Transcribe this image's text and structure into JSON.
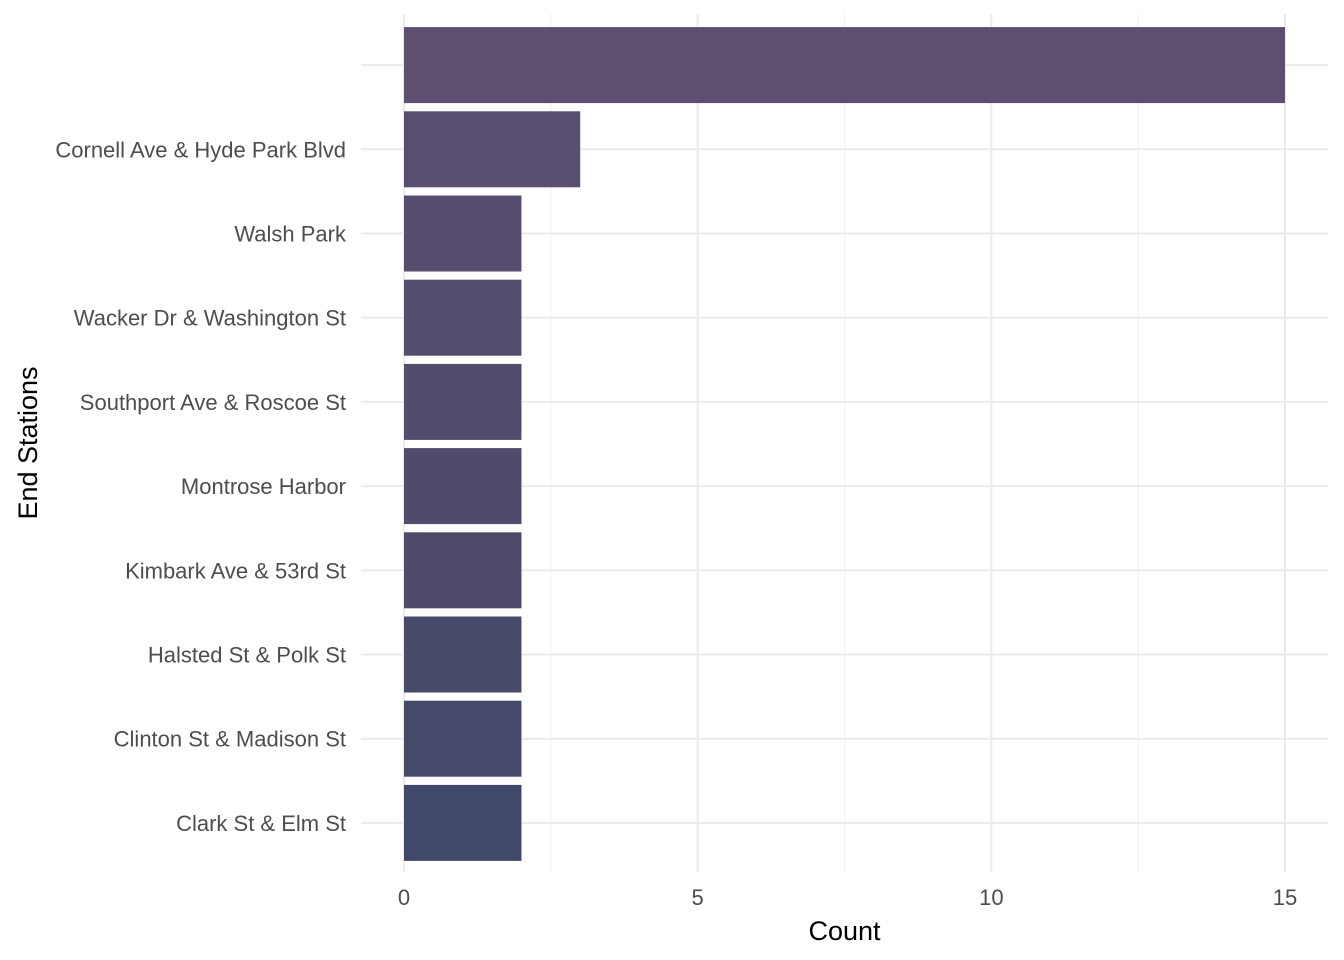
{
  "chart_data": {
    "type": "bar",
    "orientation": "horizontal",
    "title": "",
    "xlabel": "Count",
    "ylabel": "End Stations",
    "categories": [
      "",
      "Cornell Ave & Hyde Park Blvd",
      "Walsh Park",
      "Wacker Dr & Washington St",
      "Southport Ave & Roscoe St",
      "Montrose Harbor",
      "Kimbark Ave & 53rd St",
      "Halsted St & Polk St",
      "Clinton St & Madison St",
      "Clark St & Elm St"
    ],
    "values": [
      15,
      3,
      2,
      2,
      2,
      2,
      2,
      2,
      2,
      2
    ],
    "xlim": [
      0,
      15
    ],
    "xticks": [
      0,
      5,
      10,
      15
    ],
    "grid": true,
    "legend": "none",
    "bar_colors": [
      "#5e4f71",
      "#5a4e70",
      "#574d6f",
      "#554d6e",
      "#534c6d",
      "#504b6c",
      "#4d4a6b",
      "#484a6a",
      "#454a6a",
      "#41496a"
    ]
  }
}
